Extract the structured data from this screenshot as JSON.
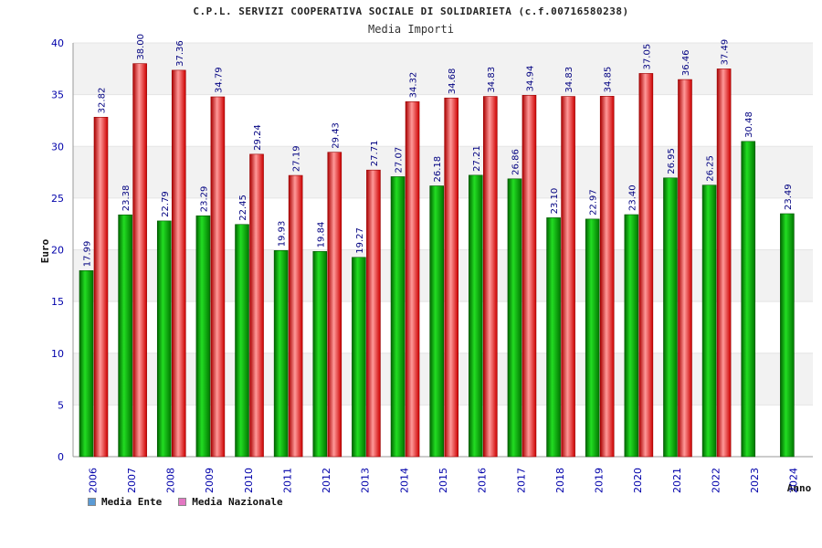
{
  "chart_data": {
    "type": "bar",
    "title": "C.P.L. SERVIZI COOPERATIVA SOCIALE DI SOLIDARIETA (c.f.00716580238)",
    "subtitle": "Media Importi",
    "xlabel": "Anno",
    "ylabel": "Euro",
    "ylim": [
      0,
      40
    ],
    "yticks": [
      0,
      5,
      10,
      15,
      20,
      25,
      30,
      35,
      40
    ],
    "categories": [
      "2006",
      "2007",
      "2008",
      "2009",
      "2010",
      "2011",
      "2012",
      "2013",
      "2014",
      "2015",
      "2016",
      "2017",
      "2018",
      "2019",
      "2020",
      "2021",
      "2022",
      "2023",
      "2024"
    ],
    "series": [
      {
        "name": "Media Ente",
        "values": [
          17.99,
          23.38,
          22.79,
          23.29,
          22.45,
          19.93,
          19.84,
          19.27,
          27.07,
          26.18,
          27.21,
          26.86,
          23.1,
          22.97,
          23.4,
          26.95,
          26.25,
          30.48,
          23.49
        ],
        "labels": [
          "17.99",
          "23.38",
          "22.79",
          "23.29",
          "22.45",
          "19.93",
          "19.84",
          "19.27",
          "27.07",
          "26.18",
          "27.21",
          "26.86",
          "23.10",
          "22.97",
          "23.40",
          "26.95",
          "26.25",
          "30.48",
          "23.49"
        ]
      },
      {
        "name": "Media Nazionale",
        "values": [
          32.82,
          38.0,
          37.36,
          34.79,
          29.24,
          27.19,
          29.43,
          27.71,
          34.32,
          34.68,
          34.83,
          34.94,
          34.83,
          34.85,
          37.05,
          36.46,
          37.49,
          null,
          null
        ],
        "labels": [
          "32.82",
          "38.00",
          "37.36",
          "34.79",
          "29.24",
          "27.19",
          "29.43",
          "27.71",
          "34.32",
          "34.68",
          "34.83",
          "34.94",
          "34.83",
          "34.85",
          "37.05",
          "36.46",
          "37.49",
          null,
          null
        ]
      }
    ],
    "legend_position": "bottom-left",
    "grid": true
  },
  "legend": {
    "ente_label": "Media Ente",
    "ente_color": "#5b9bd5",
    "nazionale_label": "Media Nazionale",
    "nazionale_color": "#e377c2"
  },
  "colors": {
    "ente_bar": "#00b000",
    "nazionale_bar": "#ee2222",
    "axis_text": "#0000aa",
    "label_text": "#000080"
  }
}
